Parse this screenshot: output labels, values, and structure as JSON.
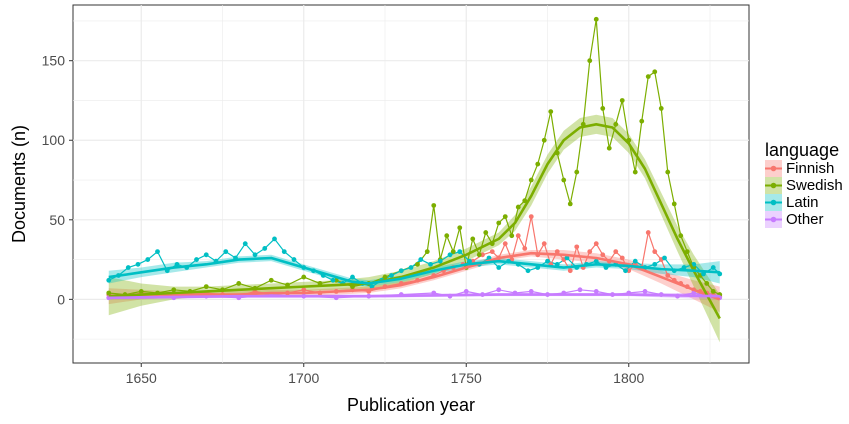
{
  "chart_data": {
    "type": "line",
    "xlabel": "Publication year",
    "ylabel": "Documents (n)",
    "xlim": [
      1629,
      1837
    ],
    "ylim": [
      -40,
      185
    ],
    "xticks": [
      1650,
      1700,
      1750,
      1800
    ],
    "yticks": [
      0,
      50,
      100,
      150
    ],
    "grid": true,
    "legend_position": "right",
    "legend": {
      "title": "language",
      "entries": [
        "Finnish",
        "Swedish",
        "Latin",
        "Other"
      ]
    },
    "colors": {
      "Finnish": "#f8766d",
      "Swedish": "#7cae00",
      "Latin": "#00bfc4",
      "Other": "#c77cff"
    },
    "series": [
      {
        "name": "Finnish",
        "x": [
          1640,
          1645,
          1650,
          1655,
          1660,
          1665,
          1670,
          1675,
          1680,
          1685,
          1690,
          1695,
          1700,
          1705,
          1710,
          1715,
          1720,
          1725,
          1730,
          1735,
          1740,
          1743,
          1746,
          1749,
          1752,
          1755,
          1758,
          1760,
          1762,
          1764,
          1766,
          1768,
          1770,
          1772,
          1774,
          1776,
          1778,
          1780,
          1782,
          1784,
          1786,
          1788,
          1790,
          1792,
          1794,
          1796,
          1798,
          1800,
          1802,
          1804,
          1806,
          1808,
          1810,
          1812,
          1814,
          1816,
          1818,
          1820,
          1822,
          1824,
          1826,
          1828
        ],
        "values": [
          3,
          2,
          4,
          3,
          2,
          3,
          4,
          3,
          2,
          5,
          3,
          4,
          6,
          4,
          5,
          6,
          5,
          8,
          10,
          12,
          15,
          18,
          20,
          22,
          24,
          28,
          30,
          26,
          35,
          25,
          40,
          32,
          52,
          28,
          35,
          22,
          30,
          25,
          18,
          33,
          20,
          30,
          35,
          28,
          24,
          30,
          26,
          18,
          22,
          20,
          42,
          30,
          25,
          15,
          12,
          10,
          8,
          6,
          5,
          4,
          3,
          2
        ]
      },
      {
        "name": "Swedish",
        "x": [
          1640,
          1645,
          1650,
          1655,
          1660,
          1665,
          1670,
          1675,
          1680,
          1685,
          1690,
          1695,
          1700,
          1705,
          1710,
          1715,
          1720,
          1725,
          1730,
          1735,
          1738,
          1740,
          1742,
          1744,
          1746,
          1748,
          1750,
          1752,
          1754,
          1756,
          1758,
          1760,
          1762,
          1764,
          1766,
          1768,
          1770,
          1772,
          1774,
          1776,
          1778,
          1780,
          1782,
          1784,
          1786,
          1788,
          1790,
          1792,
          1794,
          1796,
          1798,
          1800,
          1802,
          1804,
          1806,
          1808,
          1810,
          1812,
          1814,
          1816,
          1818,
          1820,
          1822,
          1824,
          1826,
          1828
        ],
        "values": [
          4,
          3,
          5,
          4,
          6,
          5,
          8,
          6,
          10,
          7,
          12,
          9,
          14,
          10,
          12,
          8,
          10,
          14,
          18,
          22,
          30,
          59,
          25,
          40,
          30,
          45,
          20,
          38,
          28,
          42,
          35,
          48,
          52,
          40,
          58,
          62,
          75,
          85,
          100,
          118,
          92,
          75,
          60,
          80,
          110,
          150,
          176,
          120,
          95,
          110,
          125,
          100,
          80,
          112,
          140,
          143,
          120,
          80,
          60,
          40,
          30,
          20,
          15,
          10,
          5,
          3
        ]
      },
      {
        "name": "Latin",
        "x": [
          1640,
          1643,
          1646,
          1649,
          1652,
          1655,
          1658,
          1661,
          1664,
          1667,
          1670,
          1673,
          1676,
          1679,
          1682,
          1685,
          1688,
          1691,
          1694,
          1697,
          1700,
          1703,
          1706,
          1709,
          1712,
          1715,
          1718,
          1721,
          1724,
          1727,
          1730,
          1733,
          1736,
          1739,
          1742,
          1745,
          1748,
          1751,
          1754,
          1757,
          1760,
          1763,
          1766,
          1769,
          1772,
          1775,
          1778,
          1781,
          1784,
          1787,
          1790,
          1793,
          1796,
          1799,
          1802,
          1805,
          1808,
          1811,
          1814,
          1817,
          1820,
          1823,
          1826,
          1828
        ],
        "values": [
          12,
          15,
          20,
          22,
          25,
          30,
          18,
          22,
          20,
          25,
          28,
          24,
          30,
          26,
          35,
          28,
          32,
          38,
          30,
          25,
          20,
          18,
          15,
          12,
          10,
          14,
          10,
          8,
          12,
          15,
          18,
          20,
          25,
          22,
          24,
          28,
          30,
          24,
          22,
          26,
          20,
          24,
          22,
          18,
          20,
          24,
          22,
          26,
          20,
          22,
          24,
          20,
          22,
          18,
          24,
          20,
          22,
          26,
          18,
          20,
          22,
          16,
          20,
          16
        ]
      },
      {
        "name": "Other",
        "x": [
          1640,
          1650,
          1660,
          1670,
          1680,
          1690,
          1700,
          1710,
          1720,
          1730,
          1740,
          1745,
          1750,
          1755,
          1760,
          1765,
          1770,
          1775,
          1780,
          1785,
          1790,
          1795,
          1800,
          1805,
          1810,
          1815,
          1820,
          1825,
          1828
        ],
        "values": [
          1,
          2,
          1,
          2,
          1,
          3,
          2,
          1,
          2,
          3,
          4,
          2,
          5,
          3,
          6,
          4,
          5,
          3,
          4,
          6,
          5,
          3,
          4,
          5,
          3,
          2,
          4,
          2,
          1
        ]
      }
    ],
    "smooth": [
      {
        "name": "Finnish",
        "x": [
          1640,
          1650,
          1660,
          1670,
          1680,
          1690,
          1700,
          1710,
          1720,
          1730,
          1740,
          1750,
          1760,
          1770,
          1780,
          1790,
          1800,
          1810,
          1820,
          1828
        ],
        "values": [
          2,
          3,
          3,
          3,
          3,
          4,
          4,
          5,
          6,
          9,
          14,
          20,
          26,
          29,
          28,
          26,
          22,
          14,
          6,
          0
        ],
        "lower": [
          -3,
          0,
          1,
          1,
          1,
          2,
          2,
          3,
          4,
          7,
          12,
          18,
          24,
          27,
          25,
          23,
          19,
          10,
          0,
          -8
        ],
        "upper": [
          7,
          6,
          5,
          5,
          5,
          6,
          6,
          7,
          8,
          11,
          16,
          22,
          28,
          31,
          31,
          29,
          25,
          18,
          12,
          8
        ]
      },
      {
        "name": "Swedish",
        "x": [
          1640,
          1650,
          1660,
          1670,
          1680,
          1690,
          1700,
          1710,
          1720,
          1730,
          1740,
          1750,
          1760,
          1765,
          1770,
          1775,
          1780,
          1785,
          1790,
          1795,
          1800,
          1805,
          1810,
          1815,
          1820,
          1828
        ],
        "values": [
          2,
          3,
          4,
          5,
          6,
          7,
          8,
          9,
          10,
          14,
          20,
          28,
          38,
          48,
          65,
          85,
          100,
          108,
          110,
          108,
          98,
          82,
          60,
          38,
          18,
          -12
        ],
        "lower": [
          -10,
          -4,
          0,
          2,
          3,
          4,
          5,
          6,
          6,
          10,
          16,
          24,
          34,
          43,
          59,
          79,
          94,
          102,
          104,
          102,
          92,
          76,
          53,
          30,
          8,
          -27
        ],
        "upper": [
          14,
          10,
          8,
          8,
          9,
          10,
          11,
          12,
          14,
          18,
          24,
          32,
          42,
          53,
          71,
          91,
          106,
          114,
          116,
          114,
          104,
          88,
          67,
          46,
          28,
          3
        ]
      },
      {
        "name": "Latin",
        "x": [
          1640,
          1650,
          1660,
          1670,
          1680,
          1690,
          1700,
          1710,
          1715,
          1720,
          1730,
          1740,
          1750,
          1760,
          1770,
          1780,
          1790,
          1800,
          1810,
          1820,
          1828
        ],
        "values": [
          14,
          17,
          20,
          22,
          25,
          26,
          20,
          14,
          11,
          10,
          13,
          18,
          22,
          24,
          22,
          20,
          22,
          21,
          19,
          18,
          17
        ],
        "lower": [
          10,
          14,
          17,
          20,
          23,
          24,
          18,
          12,
          9,
          8,
          11,
          16,
          20,
          22,
          20,
          18,
          20,
          19,
          16,
          14,
          10
        ],
        "upper": [
          18,
          20,
          23,
          24,
          27,
          28,
          22,
          16,
          13,
          12,
          15,
          20,
          24,
          26,
          24,
          22,
          24,
          23,
          22,
          22,
          24
        ]
      },
      {
        "name": "Other",
        "x": [
          1640,
          1680,
          1720,
          1760,
          1800,
          1828
        ],
        "values": [
          1,
          2,
          2,
          3,
          3,
          2
        ],
        "lower": [
          0,
          1,
          1,
          2,
          2,
          0
        ],
        "upper": [
          2,
          3,
          3,
          4,
          4,
          4
        ]
      }
    ]
  }
}
